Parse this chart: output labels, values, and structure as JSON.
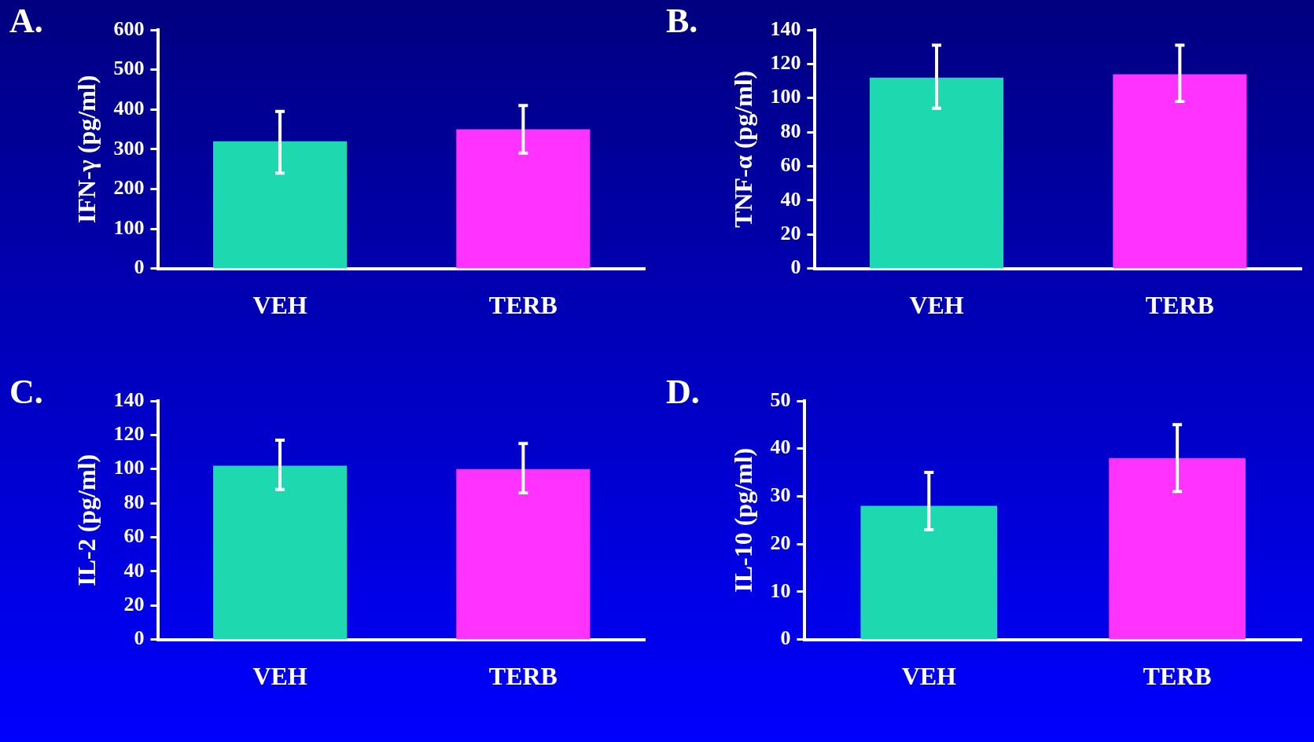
{
  "chart_data": [
    {
      "type": "bar",
      "title": "A.",
      "ylabel": "IFN-γ (pg/ml)",
      "categories": [
        "VEH",
        "TERB"
      ],
      "values": [
        320,
        350
      ],
      "colors": [
        "#1ed8b0",
        "#ff33ff"
      ],
      "errors": [
        [
          240,
          395
        ],
        [
          290,
          410
        ]
      ],
      "ylim": [
        0,
        600
      ],
      "yticks": [
        0,
        100,
        200,
        300,
        400,
        500,
        600
      ],
      "grid": false,
      "legend": false
    },
    {
      "type": "bar",
      "title": "B.",
      "ylabel": "TNF-α (pg/ml)",
      "categories": [
        "VEH",
        "TERB"
      ],
      "values": [
        112,
        114
      ],
      "colors": [
        "#1ed8b0",
        "#ff33ff"
      ],
      "errors": [
        [
          94,
          131
        ],
        [
          98,
          131
        ]
      ],
      "ylim": [
        0,
        140
      ],
      "yticks": [
        0,
        20,
        40,
        60,
        80,
        100,
        120,
        140
      ],
      "grid": false,
      "legend": false
    },
    {
      "type": "bar",
      "title": "C.",
      "ylabel": "IL-2 (pg/ml)",
      "categories": [
        "VEH",
        "TERB"
      ],
      "values": [
        102,
        100
      ],
      "colors": [
        "#1ed8b0",
        "#ff33ff"
      ],
      "errors": [
        [
          88,
          117
        ],
        [
          86,
          115
        ]
      ],
      "ylim": [
        0,
        140
      ],
      "yticks": [
        0,
        20,
        40,
        60,
        80,
        100,
        120,
        140
      ],
      "grid": false,
      "legend": false
    },
    {
      "type": "bar",
      "title": "D.",
      "ylabel": "IL-10 (pg/ml)",
      "categories": [
        "VEH",
        "TERB"
      ],
      "values": [
        28,
        38
      ],
      "colors": [
        "#1ed8b0",
        "#ff33ff"
      ],
      "errors": [
        [
          23,
          35
        ],
        [
          31,
          45
        ]
      ],
      "ylim": [
        0,
        50
      ],
      "yticks": [
        0,
        10,
        20,
        30,
        40,
        50
      ],
      "grid": false,
      "legend": false
    }
  ]
}
